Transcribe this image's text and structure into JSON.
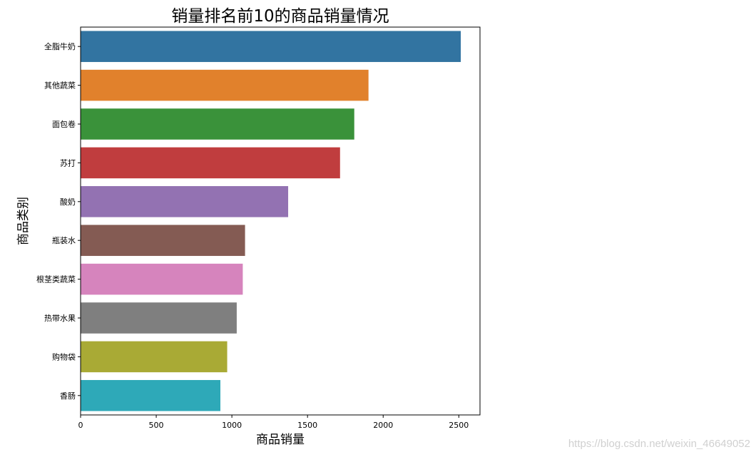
{
  "chart_data": {
    "type": "bar",
    "orientation": "horizontal",
    "title": "销量排名前10的商品销量情况",
    "xlabel": "商品销量",
    "ylabel": "商品类别",
    "categories": [
      "全脂牛奶",
      "其他蔬菜",
      "面包卷",
      "苏打",
      "酸奶",
      "瓶装水",
      "根茎类蔬菜",
      "热带水果",
      "购物袋",
      "香肠"
    ],
    "values": [
      2513,
      1903,
      1809,
      1715,
      1372,
      1087,
      1072,
      1032,
      969,
      924
    ],
    "colors": [
      "#3274a1",
      "#e1812c",
      "#3a923a",
      "#c03d3e",
      "#9372b2",
      "#845b53",
      "#d684bd",
      "#7f7f7f",
      "#a9aa35",
      "#2ea9b8"
    ],
    "xlim": [
      0,
      2640
    ],
    "xticks": [
      0,
      500,
      1000,
      1500,
      2000,
      2500
    ],
    "grid": false,
    "legend": "none"
  },
  "watermark": "https://blog.csdn.net/weixin_46649052"
}
